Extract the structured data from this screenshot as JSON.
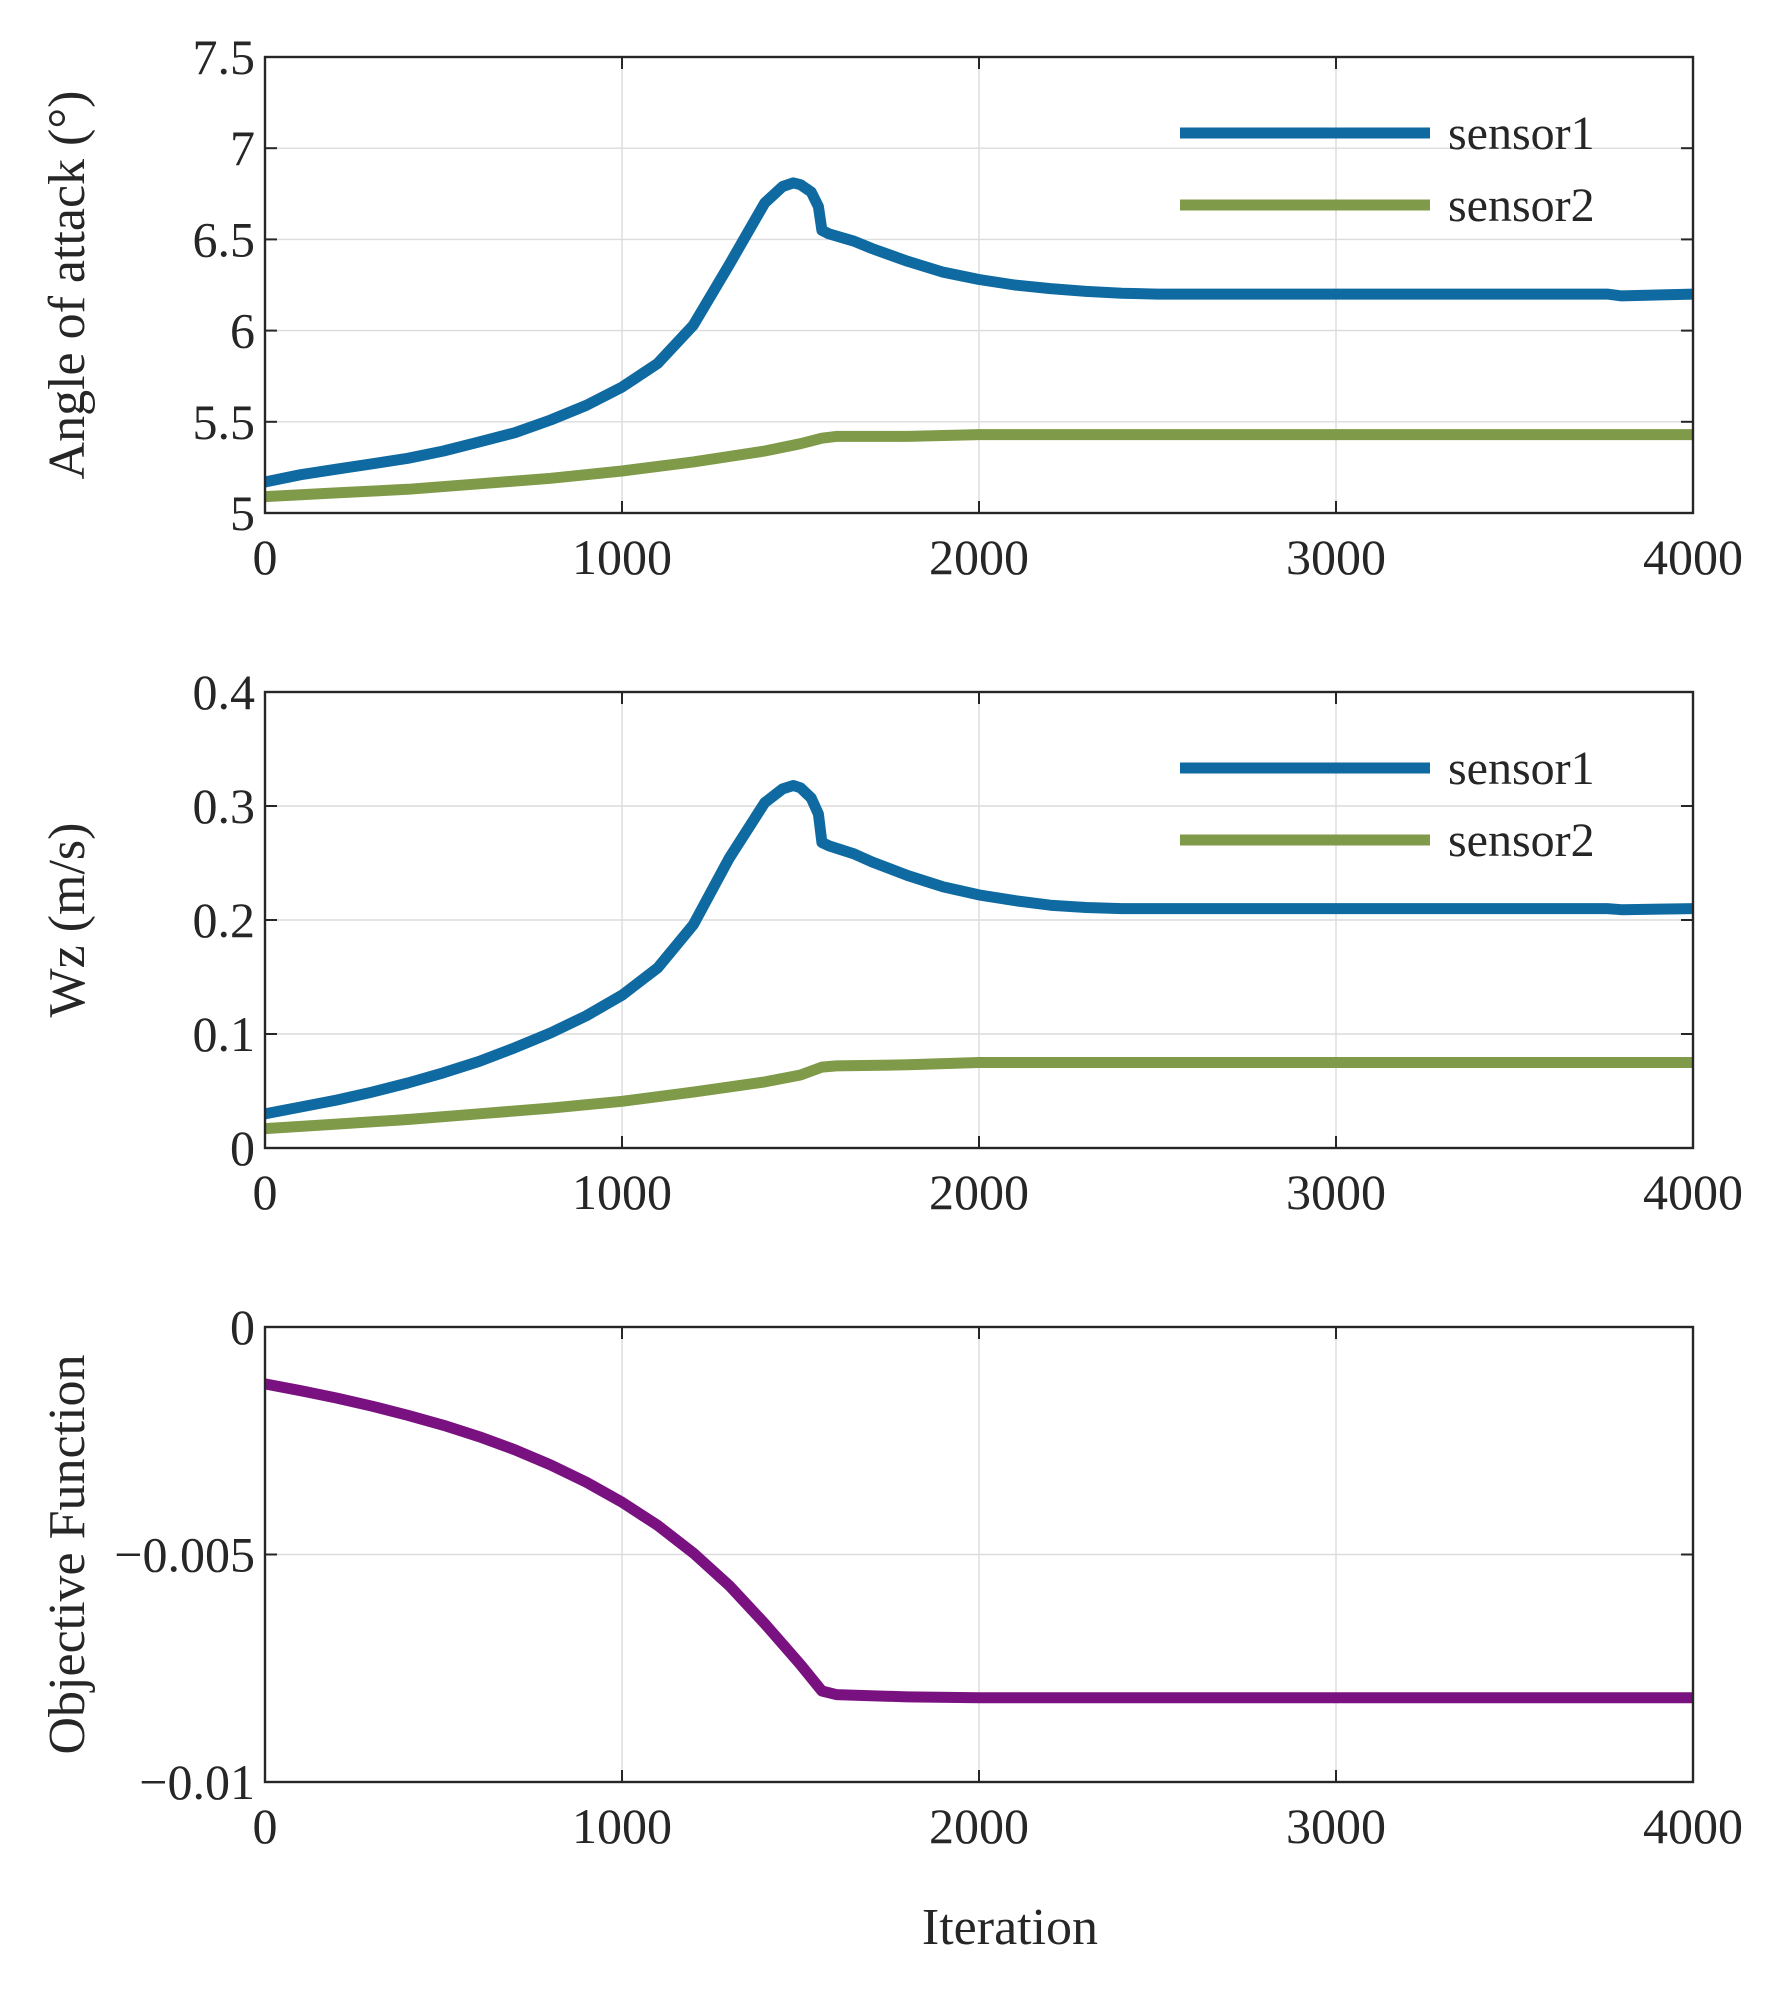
{
  "chart_data": [
    {
      "type": "line",
      "ylabel": "Angle of attack (°)",
      "xlabel": "",
      "xlim": [
        0,
        4000
      ],
      "ylim": [
        5,
        7.5
      ],
      "xticks": [
        0,
        1000,
        2000,
        3000,
        4000
      ],
      "xtick_labels": [
        "0",
        "1000",
        "2000",
        "3000",
        "4000"
      ],
      "yticks": [
        5,
        5.5,
        6,
        6.5,
        7,
        7.5
      ],
      "ytick_labels": [
        "5",
        "5.5",
        "6",
        "6.5",
        "7",
        "7.5"
      ],
      "grid": true,
      "legend_position": "top-right",
      "series": [
        {
          "name": "sensor1",
          "color": "#0f6aa1",
          "x": [
            0,
            100,
            200,
            300,
            400,
            500,
            600,
            700,
            800,
            900,
            1000,
            1100,
            1200,
            1300,
            1400,
            1450,
            1480,
            1500,
            1530,
            1550,
            1560,
            1580,
            1650,
            1700,
            1800,
            1900,
            2000,
            2100,
            2200,
            2300,
            2400,
            2500,
            2600,
            2800,
            3000,
            3200,
            3400,
            3600,
            3760,
            3800,
            4000
          ],
          "y": [
            5.17,
            5.21,
            5.24,
            5.27,
            5.3,
            5.34,
            5.39,
            5.44,
            5.51,
            5.59,
            5.69,
            5.82,
            6.03,
            6.36,
            6.7,
            6.79,
            6.81,
            6.8,
            6.76,
            6.68,
            6.55,
            6.53,
            6.49,
            6.45,
            6.38,
            6.32,
            6.28,
            6.25,
            6.23,
            6.215,
            6.205,
            6.2,
            6.2,
            6.2,
            6.2,
            6.2,
            6.2,
            6.2,
            6.2,
            6.19,
            6.2
          ]
        },
        {
          "name": "sensor2",
          "color": "#7f9a48",
          "x": [
            0,
            200,
            400,
            600,
            800,
            1000,
            1200,
            1400,
            1500,
            1560,
            1600,
            1800,
            2000,
            2500,
            3000,
            3500,
            4000
          ],
          "y": [
            5.09,
            5.11,
            5.13,
            5.16,
            5.19,
            5.23,
            5.28,
            5.34,
            5.38,
            5.41,
            5.42,
            5.42,
            5.43,
            5.43,
            5.43,
            5.43,
            5.43
          ]
        }
      ]
    },
    {
      "type": "line",
      "ylabel": "Wz (m/s)",
      "xlabel": "",
      "xlim": [
        0,
        4000
      ],
      "ylim": [
        0,
        0.4
      ],
      "xticks": [
        0,
        1000,
        2000,
        3000,
        4000
      ],
      "xtick_labels": [
        "0",
        "1000",
        "2000",
        "3000",
        "4000"
      ],
      "yticks": [
        0,
        0.1,
        0.2,
        0.3,
        0.4
      ],
      "ytick_labels": [
        "0",
        "0.1",
        "0.2",
        "0.3",
        "0.4"
      ],
      "grid": true,
      "legend_position": "top-right",
      "series": [
        {
          "name": "sensor1",
          "color": "#0f6aa1",
          "x": [
            0,
            100,
            200,
            300,
            400,
            500,
            600,
            700,
            800,
            900,
            1000,
            1100,
            1200,
            1300,
            1400,
            1450,
            1480,
            1500,
            1530,
            1550,
            1560,
            1580,
            1650,
            1700,
            1800,
            1900,
            2000,
            2100,
            2200,
            2300,
            2400,
            2500,
            2600,
            2800,
            3000,
            3200,
            3400,
            3600,
            3760,
            3800,
            4000
          ],
          "y": [
            0.03,
            0.036,
            0.042,
            0.049,
            0.057,
            0.066,
            0.076,
            0.088,
            0.101,
            0.116,
            0.134,
            0.158,
            0.196,
            0.254,
            0.303,
            0.315,
            0.318,
            0.316,
            0.307,
            0.293,
            0.268,
            0.265,
            0.258,
            0.251,
            0.239,
            0.229,
            0.222,
            0.217,
            0.213,
            0.211,
            0.21,
            0.21,
            0.21,
            0.21,
            0.21,
            0.21,
            0.21,
            0.21,
            0.21,
            0.209,
            0.21
          ]
        },
        {
          "name": "sensor2",
          "color": "#7f9a48",
          "x": [
            0,
            200,
            400,
            600,
            800,
            1000,
            1200,
            1400,
            1500,
            1560,
            1600,
            1800,
            2000,
            2500,
            3000,
            3500,
            4000
          ],
          "y": [
            0.017,
            0.021,
            0.025,
            0.03,
            0.035,
            0.041,
            0.049,
            0.058,
            0.064,
            0.071,
            0.072,
            0.073,
            0.075,
            0.075,
            0.075,
            0.075,
            0.075
          ]
        }
      ]
    },
    {
      "type": "line",
      "ylabel": "Objective Function",
      "xlabel": "Iteration",
      "xlim": [
        0,
        4000
      ],
      "ylim": [
        -0.01,
        0
      ],
      "xticks": [
        0,
        1000,
        2000,
        3000,
        4000
      ],
      "xtick_labels": [
        "0",
        "1000",
        "2000",
        "3000",
        "4000"
      ],
      "yticks": [
        -0.01,
        -0.005,
        0
      ],
      "ytick_labels": [
        "−0.01",
        "−0.005",
        "0"
      ],
      "grid": true,
      "series": [
        {
          "color": "#7a1180",
          "x": [
            0,
            100,
            200,
            300,
            400,
            500,
            600,
            700,
            800,
            900,
            1000,
            1100,
            1200,
            1300,
            1400,
            1500,
            1560,
            1600,
            1800,
            2000,
            2500,
            3000,
            3500,
            4000
          ],
          "y": [
            -0.00125,
            -0.0014,
            -0.00156,
            -0.00174,
            -0.00194,
            -0.00216,
            -0.00241,
            -0.0027,
            -0.00303,
            -0.00341,
            -0.00385,
            -0.00436,
            -0.00497,
            -0.00568,
            -0.00652,
            -0.00742,
            -0.008,
            -0.00808,
            -0.00813,
            -0.00815,
            -0.00815,
            -0.00815,
            -0.00815,
            -0.00815
          ]
        }
      ]
    }
  ]
}
